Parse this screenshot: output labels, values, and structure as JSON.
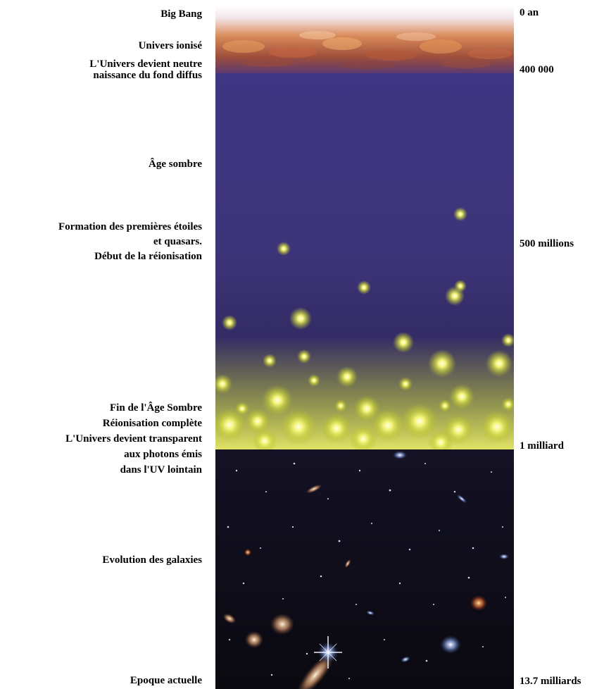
{
  "epochs": [
    {
      "label": "Big Bang",
      "time": "0 an"
    },
    {
      "label": "Univers ionisé"
    },
    {
      "label": [
        "L'Univers devient neutre",
        "naissance du fond diffus"
      ],
      "time": "400 000"
    },
    {
      "label": "Âge sombre"
    },
    {
      "label": [
        "Formation des premières étoiles",
        "et quasars.",
        "Début de la réionisation"
      ],
      "time": "500 millions"
    },
    {
      "label": [
        "Fin de l'Âge Sombre",
        "Réionisation complète",
        "L'Univers devient transparent",
        "aux photons émis",
        "dans l'UV lointain"
      ],
      "time": "1 milliard"
    },
    {
      "label": "Evolution des galaxies"
    },
    {
      "label": "Epoque actuelle",
      "time": "13.7 milliards"
    }
  ],
  "colors": {
    "plasma": "#c8743a",
    "dark_age": "#3a3274",
    "first_stars": "#e8f060",
    "deep_space": "#0b0a14"
  }
}
